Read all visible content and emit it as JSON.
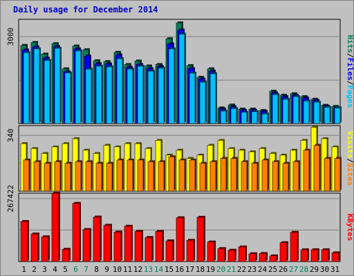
{
  "window": {
    "title": "Daily usage for December 2014"
  },
  "colors": {
    "hits": "#00805c",
    "files": "#0000ff",
    "pages": "#00c0ff",
    "visits": "#ffff00",
    "sites": "#ff8000",
    "kbytes": "#ff0000",
    "weekend_day": "#00805c",
    "weekday_day": "#000000"
  },
  "chart_data": [
    {
      "type": "bar",
      "title": "Daily usage for December 2014",
      "categories": [
        "1",
        "2",
        "3",
        "4",
        "5",
        "6",
        "7",
        "8",
        "9",
        "10",
        "11",
        "12",
        "13",
        "14",
        "15",
        "16",
        "17",
        "18",
        "19",
        "20",
        "21",
        "22",
        "23",
        "24",
        "25",
        "26",
        "27",
        "28",
        "29",
        "30",
        "31"
      ],
      "weekend_days": [
        "6",
        "7",
        "13",
        "14",
        "20",
        "21",
        "27",
        "28"
      ],
      "ylabel_max": "3000",
      "ylim": [
        0,
        3600
      ],
      "legend": [
        "Pages",
        "Files",
        "Hits"
      ],
      "series": [
        {
          "name": "Hits",
          "values": [
            2700,
            2800,
            2400,
            2760,
            1890,
            2680,
            2550,
            2170,
            2140,
            2460,
            2040,
            2160,
            1990,
            2040,
            2930,
            3480,
            2000,
            1600,
            1890,
            540,
            640,
            500,
            500,
            450,
            1120,
            980,
            1030,
            930,
            840,
            630,
            590
          ]
        },
        {
          "name": "Files",
          "values": [
            2540,
            2650,
            2260,
            2660,
            1790,
            2580,
            2330,
            2070,
            2060,
            2370,
            1940,
            2040,
            1900,
            1970,
            2750,
            3230,
            1900,
            1540,
            1810,
            500,
            580,
            460,
            460,
            420,
            1060,
            930,
            980,
            880,
            800,
            600,
            550
          ]
        },
        {
          "name": "Pages",
          "values": [
            2450,
            2580,
            2180,
            2600,
            1750,
            2510,
            1880,
            1980,
            1960,
            2240,
            1880,
            1980,
            1810,
            1910,
            2580,
            3090,
            1740,
            1430,
            1720,
            430,
            520,
            390,
            410,
            330,
            1000,
            840,
            930,
            780,
            740,
            560,
            540
          ]
        }
      ]
    },
    {
      "type": "bar",
      "categories": [
        "1",
        "2",
        "3",
        "4",
        "5",
        "6",
        "7",
        "8",
        "9",
        "10",
        "11",
        "12",
        "13",
        "14",
        "15",
        "16",
        "17",
        "18",
        "19",
        "20",
        "21",
        "22",
        "23",
        "24",
        "25",
        "26",
        "27",
        "28",
        "29",
        "30",
        "31"
      ],
      "ylabel_max": "340",
      "ylim": [
        0,
        400
      ],
      "legend": [
        "Sites",
        "Visits"
      ],
      "series": [
        {
          "name": "Visits",
          "values": [
            290,
            260,
            230,
            270,
            290,
            320,
            250,
            230,
            280,
            270,
            290,
            290,
            260,
            310,
            220,
            250,
            200,
            220,
            280,
            310,
            260,
            250,
            240,
            260,
            230,
            220,
            250,
            310,
            390,
            320,
            270
          ]
        },
        {
          "name": "Sites",
          "values": [
            190,
            180,
            170,
            180,
            170,
            180,
            180,
            170,
            170,
            190,
            190,
            190,
            180,
            180,
            210,
            190,
            190,
            170,
            180,
            200,
            200,
            180,
            170,
            190,
            180,
            170,
            180,
            250,
            280,
            200,
            200
          ]
        }
      ]
    },
    {
      "type": "bar",
      "categories": [
        "1",
        "2",
        "3",
        "4",
        "5",
        "6",
        "7",
        "8",
        "9",
        "10",
        "11",
        "12",
        "13",
        "14",
        "15",
        "16",
        "17",
        "18",
        "19",
        "20",
        "21",
        "22",
        "23",
        "24",
        "25",
        "26",
        "27",
        "28",
        "29",
        "30",
        "31"
      ],
      "ylabel_max": "267422",
      "ylim": [
        0,
        290000
      ],
      "legend": [
        "KBytes"
      ],
      "series": [
        {
          "name": "KBytes",
          "values": [
            170000,
            117000,
            105000,
            290000,
            52000,
            247000,
            136000,
            189000,
            154000,
            125000,
            150000,
            128000,
            102000,
            128000,
            88000,
            186000,
            90000,
            188000,
            83000,
            55000,
            48000,
            62000,
            33000,
            34000,
            24000,
            80000,
            124000,
            50000,
            50000,
            50000,
            37000
          ]
        }
      ]
    }
  ]
}
